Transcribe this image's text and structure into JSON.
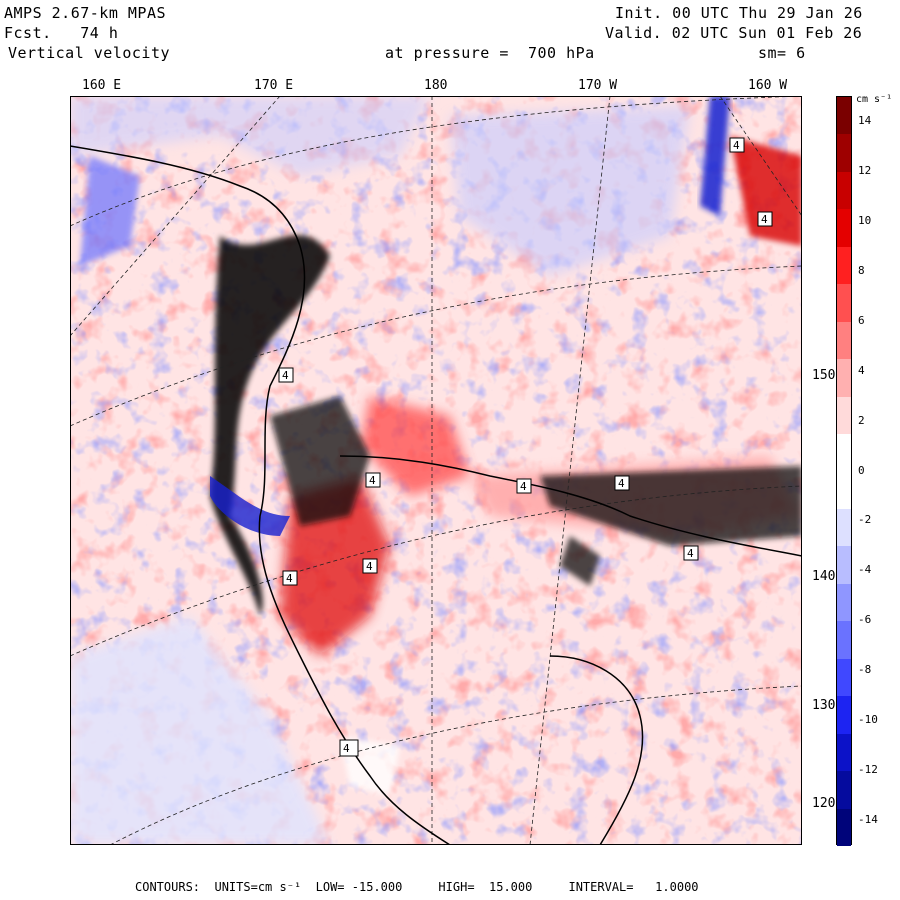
{
  "header": {
    "model": "AMPS 2.67-km MPAS",
    "fcst": "Fcst.   74 h",
    "field": "Vertical velocity",
    "init": "Init. 00 UTC Thu 29 Jan 26",
    "valid": "Valid. 02 UTC Sun 01 Feb 26",
    "pressure": "at pressure =  700 hPa",
    "smooth": "sm= 6"
  },
  "longitude_labels": [
    "160 E",
    "170 E",
    "180",
    "170 W",
    "160 W"
  ],
  "latitude_labels": [
    "150 W",
    "140 W",
    "130",
    "120 W"
  ],
  "colorbar": {
    "units": "cm s⁻¹",
    "labels": [
      "14",
      "12",
      "10",
      "8",
      "6",
      "4",
      "2",
      "0",
      "-2",
      "-4",
      "-6",
      "-8",
      "-10",
      "-12",
      "-14"
    ],
    "colors": [
      "#7a0000",
      "#9e0000",
      "#c80000",
      "#e40000",
      "#ff2020",
      "#ff5050",
      "#ff8080",
      "#ffb0b0",
      "#ffdada",
      "#ffffff",
      "#ffffff",
      "#dde0ff",
      "#b8bdff",
      "#8f96ff",
      "#6a72ff",
      "#4048ff",
      "#1d24f2",
      "#0c12c8",
      "#050b9e",
      "#00047a"
    ]
  },
  "footer": {
    "contours": "CONTOURS:  UNITS=cm s⁻¹  LOW= -15.000     HIGH=  15.000     INTERVAL=   1.0000"
  },
  "map_labels": [
    "4",
    "4",
    "4",
    "4",
    "4",
    "4",
    "4",
    "4",
    "4",
    "4"
  ],
  "accent_colors": {
    "updraft": "#e01010",
    "downdraft": "#1820d0",
    "neutral": "#ffffff"
  }
}
